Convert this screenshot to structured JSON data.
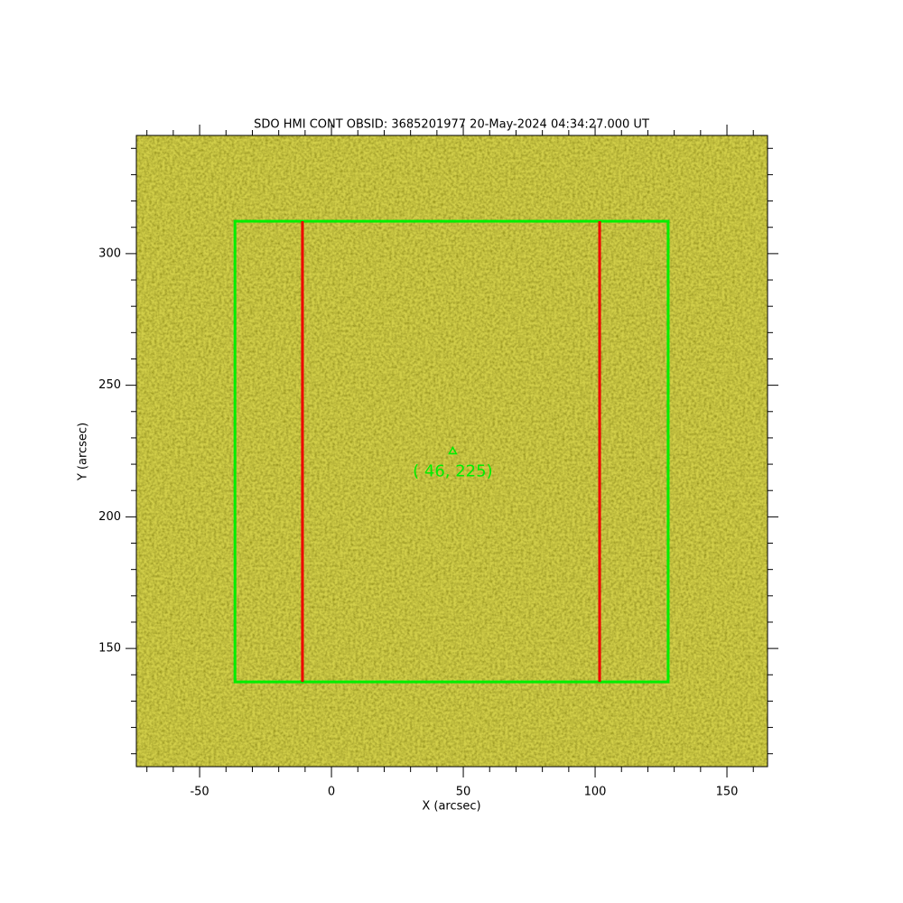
{
  "chart_data": {
    "type": "image",
    "title": "SDO HMI CONT OBSID: 3685201977 20-May-2024 04:34:27.000 UT",
    "x_label": "X (arcsec)",
    "y_label": "Y (arcsec)",
    "xlim": [
      -74,
      165.4
    ],
    "ylim": [
      105.1,
      344.9
    ],
    "xticks": [
      -50,
      0,
      50,
      100,
      150
    ],
    "yticks": [
      150,
      200,
      250,
      300
    ],
    "xminorticks": [
      -70,
      -60,
      -40,
      -30,
      -20,
      -10,
      10,
      20,
      30,
      40,
      60,
      70,
      80,
      90,
      110,
      120,
      130,
      140,
      160
    ],
    "yminorticks": [
      110,
      120,
      130,
      140,
      160,
      170,
      180,
      190,
      210,
      220,
      230,
      240,
      260,
      270,
      280,
      290,
      310,
      320,
      330,
      340
    ],
    "image_color": "#d2cf4a",
    "box": {
      "x": [
        -36.6,
        127.7
      ],
      "y": [
        137.3,
        312.3
      ],
      "color": "#00ee00"
    },
    "vlines": {
      "x": [
        -11,
        101.7
      ],
      "color": "#ee0000"
    },
    "marker": {
      "x": 46,
      "y": 225,
      "label": "( 46, 225)",
      "color": "#00ee00"
    }
  }
}
